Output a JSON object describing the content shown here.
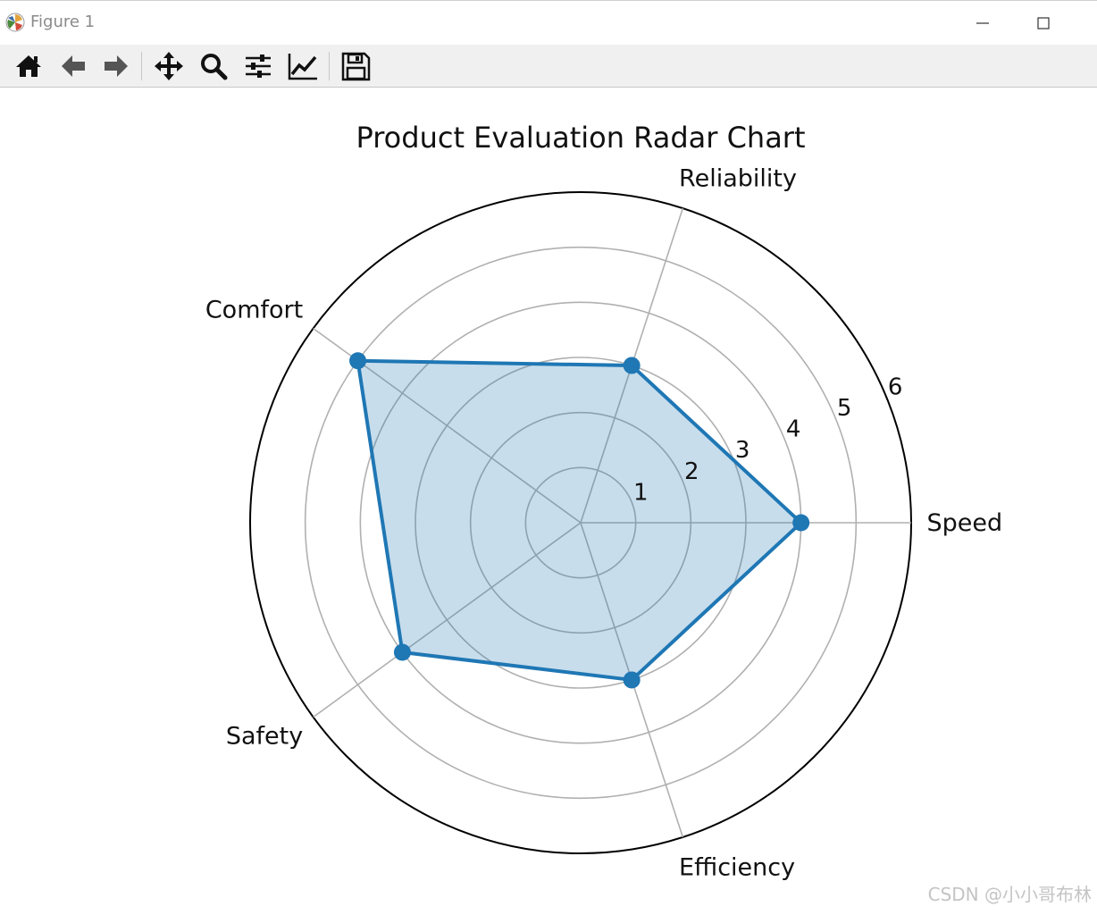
{
  "window": {
    "title": "Figure 1",
    "minimize_glyph": "—",
    "maximize_glyph": "☐"
  },
  "toolbar": {
    "buttons": [
      {
        "name": "home-icon"
      },
      {
        "name": "back-icon"
      },
      {
        "name": "forward-icon"
      },
      {
        "name": "pan-icon"
      },
      {
        "name": "zoom-icon"
      },
      {
        "name": "configure-subplots-icon"
      },
      {
        "name": "edit-axis-icon"
      },
      {
        "name": "save-icon"
      }
    ]
  },
  "watermark": "CSDN @小小哥布林",
  "chart_data": {
    "type": "radar",
    "title": "Product Evaluation Radar Chart",
    "categories": [
      "Speed",
      "Reliability",
      "Comfort",
      "Safety",
      "Efficiency"
    ],
    "series": [
      {
        "values": [
          4,
          3,
          5,
          4,
          3
        ]
      }
    ],
    "rlim": [
      0,
      6
    ],
    "rticks": [
      1,
      2,
      3,
      4,
      5,
      6
    ],
    "grid": true,
    "line_color": "#1f77b4",
    "fill_color": "#1f77b4",
    "fill_alpha": 0.25
  }
}
